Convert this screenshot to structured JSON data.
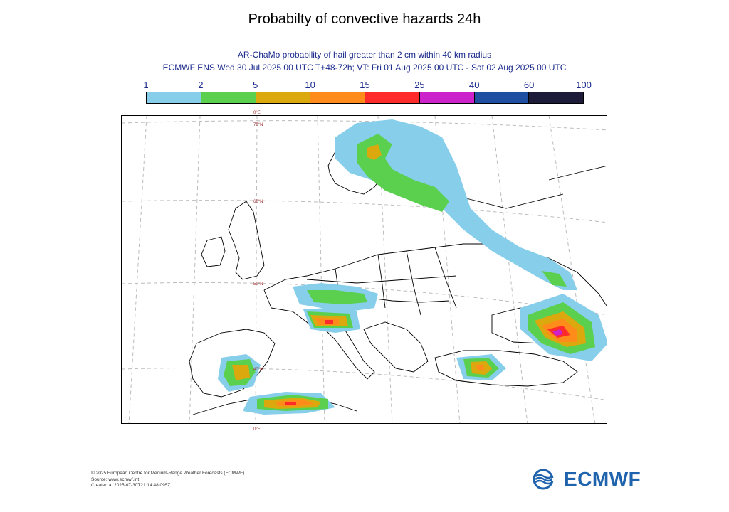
{
  "title": "Probabilty of convective hazards 24h",
  "subtitle1": "AR-ChaMo probability of hail greater than 2 cm within 40 km radius",
  "subtitle2": "ECMWF ENS Wed 30 Jul 2025 00 UTC T+48-72h; VT: Fri 01 Aug 2025 00 UTC - Sat 02 Aug 2025 00 UTC",
  "legend": {
    "ticks": [
      "1",
      "2",
      "5",
      "10",
      "15",
      "25",
      "40",
      "60",
      "100"
    ],
    "colors": [
      "#87ceeb",
      "#5bd04f",
      "#dba80e",
      "#ff8c1a",
      "#ff2a2a",
      "#cc22cc",
      "#1f4fa0",
      "#1c1c3a"
    ]
  },
  "map": {
    "grid_labels": [
      "0°E",
      "70°N",
      "60°N",
      "50°N",
      "40°N",
      "0°E"
    ]
  },
  "footer": {
    "line1": "© 2025 European Centre for Medium-Range Weather Forecasts (ECMWF)",
    "line2": "Source: www.ecmwf.int",
    "line3": "Created at 2025-07-30T21:14:48.095Z"
  },
  "logo": {
    "text": "ECMWF",
    "icon": "ecmwf-waves-icon",
    "color": "#1f63ad"
  }
}
